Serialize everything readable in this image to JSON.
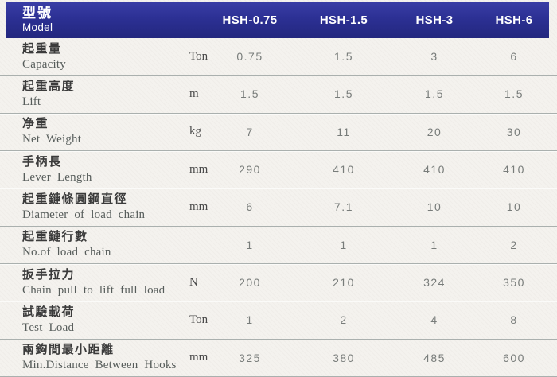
{
  "table": {
    "header": {
      "model_label_zh": "型號",
      "model_label_en": "Model",
      "columns": [
        "HSH-0.75",
        "HSH-1.5",
        "HSH-3",
        "HSH-6"
      ]
    },
    "rows": [
      {
        "zh": "起重量",
        "en": "Capacity",
        "unit": "Ton",
        "values": [
          "0.75",
          "1.5",
          "3",
          "6"
        ]
      },
      {
        "zh": "起重高度",
        "en": "Lift",
        "unit": "m",
        "values": [
          "1.5",
          "1.5",
          "1.5",
          "1.5"
        ]
      },
      {
        "zh": "净重",
        "en": "Net Weight",
        "unit": "kg",
        "values": [
          "7",
          "11",
          "20",
          "30"
        ]
      },
      {
        "zh": "手柄長",
        "en": "Lever Length",
        "unit": "mm",
        "values": [
          "290",
          "410",
          "410",
          "410"
        ]
      },
      {
        "zh": "起重鏈條圓鋼直徑",
        "en": "Diameter of load chain",
        "unit": "mm",
        "values": [
          "6",
          "7.1",
          "10",
          "10"
        ]
      },
      {
        "zh": "起重鏈行數",
        "en": "No.of load chain",
        "unit": "",
        "values": [
          "1",
          "1",
          "1",
          "2"
        ]
      },
      {
        "zh": "扳手拉力",
        "en": "Chain pull to lift full load",
        "unit": "N",
        "values": [
          "200",
          "210",
          "324",
          "350"
        ]
      },
      {
        "zh": "試驗載荷",
        "en": "Test Load",
        "unit": "Ton",
        "values": [
          "1",
          "2",
          "4",
          "8"
        ]
      },
      {
        "zh": "兩鈎間最小距離",
        "en": "Min.Distance Between Hooks",
        "unit": "mm",
        "values": [
          "325",
          "380",
          "485",
          "600"
        ]
      }
    ]
  },
  "colors": {
    "header_bg": "#2c3094",
    "page_bg": "#f4f2ee",
    "separator": "#aab0ae",
    "header_text": "#ffffff",
    "label_text": "#3b3b3b",
    "value_text": "#787c7a"
  }
}
